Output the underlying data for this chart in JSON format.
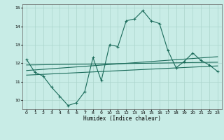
{
  "title": "",
  "xlabel": "Humidex (Indice chaleur)",
  "ylabel": "",
  "bg_color": "#c8ece6",
  "grid_color": "#aad4cc",
  "line_color": "#1a6b5a",
  "xlim": [
    -0.5,
    23.5
  ],
  "ylim": [
    9.5,
    15.2
  ],
  "yticks": [
    10,
    11,
    12,
    13,
    14,
    15
  ],
  "xticks": [
    0,
    1,
    2,
    3,
    4,
    5,
    6,
    7,
    8,
    9,
    10,
    11,
    12,
    13,
    14,
    15,
    16,
    17,
    18,
    19,
    20,
    21,
    22,
    23
  ],
  "main_line": {
    "x": [
      0,
      1,
      2,
      3,
      4,
      5,
      6,
      7,
      8,
      9,
      10,
      11,
      12,
      13,
      14,
      15,
      16,
      17,
      18,
      19,
      20,
      21,
      22,
      23
    ],
    "y": [
      12.2,
      11.5,
      11.3,
      10.7,
      10.2,
      9.7,
      9.85,
      10.45,
      12.3,
      11.05,
      13.0,
      12.9,
      14.3,
      14.4,
      14.85,
      14.3,
      14.15,
      12.7,
      11.75,
      12.1,
      12.55,
      12.15,
      11.9,
      11.55
    ]
  },
  "trend_line1": {
    "x": [
      0,
      23
    ],
    "y": [
      11.9,
      12.05
    ]
  },
  "trend_line2": {
    "x": [
      0,
      23
    ],
    "y": [
      11.6,
      12.35
    ]
  },
  "trend_line3": {
    "x": [
      0,
      23
    ],
    "y": [
      11.35,
      11.85
    ]
  }
}
